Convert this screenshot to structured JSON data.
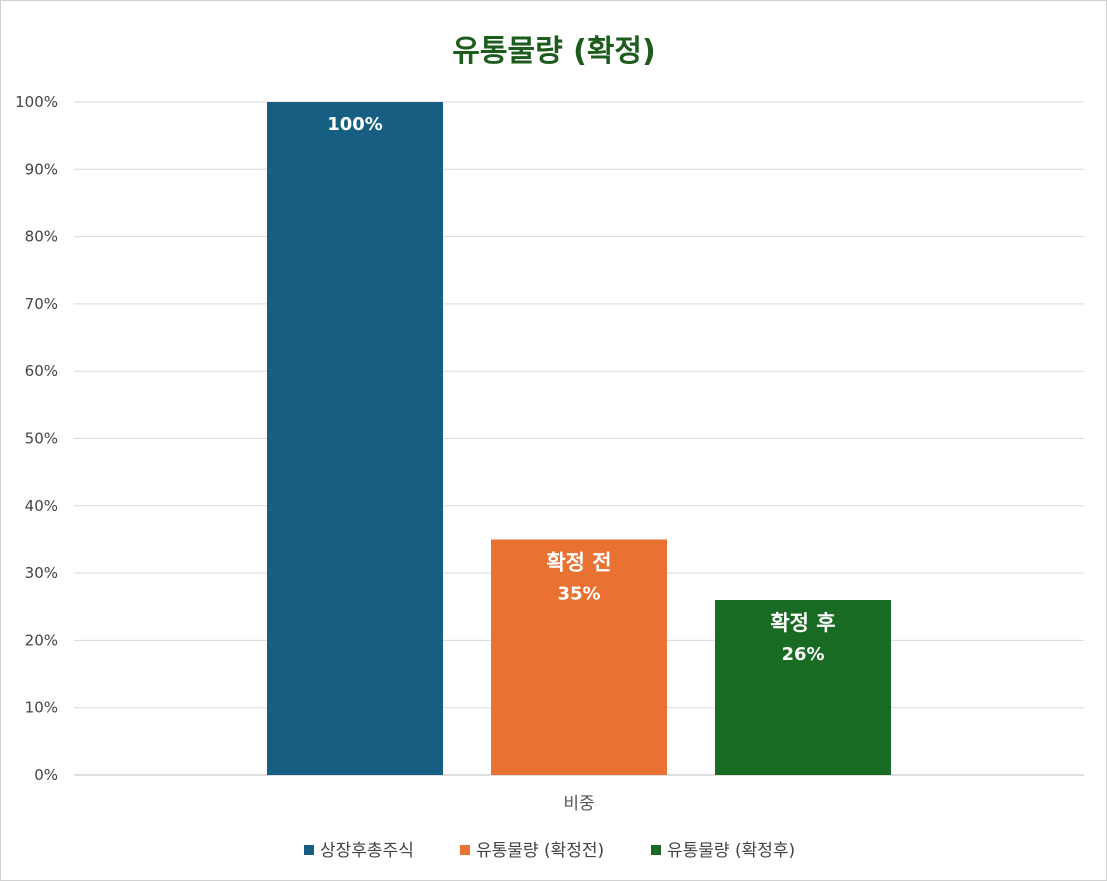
{
  "chart_data": {
    "type": "bar",
    "title": "유통물량 (확정)",
    "categories": [
      "비중"
    ],
    "series": [
      {
        "name": "상장후총주식",
        "values": [
          100
        ],
        "color": "#175f82",
        "bar_label": "",
        "value_label": "100%"
      },
      {
        "name": "유통물량 (확정전)",
        "values": [
          35
        ],
        "color": "#e97132",
        "bar_label": "확정 전",
        "value_label": "35%"
      },
      {
        "name": "유통물량 (확정후)",
        "values": [
          26
        ],
        "color": "#196b24",
        "bar_label": "확정 후",
        "value_label": "26%"
      }
    ],
    "ylim": [
      0,
      100
    ],
    "yticks": [
      "0%",
      "10%",
      "20%",
      "30%",
      "40%",
      "50%",
      "60%",
      "70%",
      "80%",
      "90%",
      "100%"
    ],
    "grid": true,
    "legend": "bottom",
    "title_color": "#1e5c1e"
  }
}
